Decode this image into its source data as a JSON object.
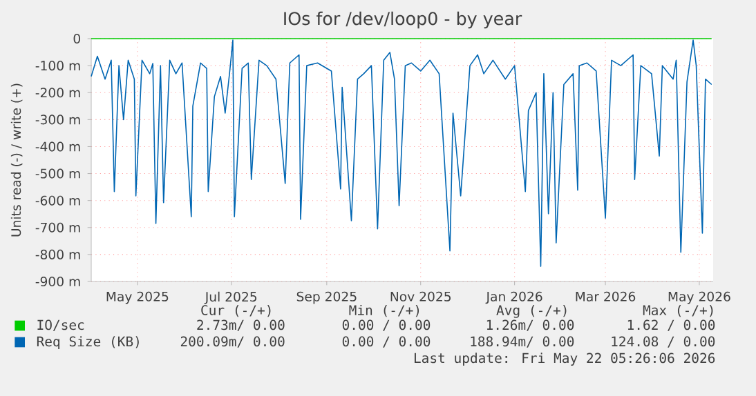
{
  "chart_data": {
    "type": "line",
    "title": "IOs for /dev/loop0 - by year",
    "ylabel": "Units read (-) / write (+)",
    "xlim": [
      "2025-04-01",
      "2026-05-10"
    ],
    "xticks": [
      {
        "value": "2025-05-01",
        "label": "May 2025"
      },
      {
        "value": "2025-07-01",
        "label": "Jul 2025"
      },
      {
        "value": "2025-09-01",
        "label": "Sep 2025"
      },
      {
        "value": "2025-11-01",
        "label": "Nov 2025"
      },
      {
        "value": "2026-01-01",
        "label": "Jan 2026"
      },
      {
        "value": "2026-03-01",
        "label": "Mar 2026"
      },
      {
        "value": "2026-05-01",
        "label": "May 2026"
      }
    ],
    "ylim": [
      -900,
      0
    ],
    "yticks": [
      {
        "value": -900,
        "label": "-900 m"
      },
      {
        "value": -800,
        "label": "-800 m"
      },
      {
        "value": -700,
        "label": "-700 m"
      },
      {
        "value": -600,
        "label": "-600 m"
      },
      {
        "value": -500,
        "label": "-500 m"
      },
      {
        "value": -400,
        "label": "-400 m"
      },
      {
        "value": -300,
        "label": "-300 m"
      },
      {
        "value": -200,
        "label": "-200 m"
      },
      {
        "value": -100,
        "label": "-100 m"
      },
      0
    ],
    "grid": true,
    "legend": "bottom",
    "series": [
      {
        "name": "IO/sec",
        "color": "#00cc00",
        "x": [
          "2025-04-01",
          "2026-05-09"
        ],
        "values": [
          0,
          0
        ]
      },
      {
        "name": "Req Size (KB)",
        "color": "#0066b3",
        "x": [
          "2025-04-01",
          "2025-04-05",
          "2025-04-10",
          "2025-04-14",
          "2025-04-16",
          "2025-04-19",
          "2025-04-22",
          "2025-04-25",
          "2025-04-29",
          "2025-04-30",
          "2025-05-04",
          "2025-05-09",
          "2025-05-11",
          "2025-05-13",
          "2025-05-16",
          "2025-05-18",
          "2025-05-22",
          "2025-05-26",
          "2025-05-30",
          "2025-06-05",
          "2025-06-06",
          "2025-06-11",
          "2025-06-15",
          "2025-06-16",
          "2025-06-20",
          "2025-06-24",
          "2025-06-27",
          "2025-06-30",
          "2025-07-02",
          "2025-07-03",
          "2025-07-08",
          "2025-07-12",
          "2025-07-14",
          "2025-07-19",
          "2025-07-24",
          "2025-07-30",
          "2025-08-05",
          "2025-08-08",
          "2025-08-14",
          "2025-08-15",
          "2025-08-19",
          "2025-08-26",
          "2025-09-04",
          "2025-09-10",
          "2025-09-11",
          "2025-09-17",
          "2025-09-21",
          "2025-09-25",
          "2025-09-30",
          "2025-10-04",
          "2025-10-08",
          "2025-10-12",
          "2025-10-15",
          "2025-10-18",
          "2025-10-22",
          "2025-10-26",
          "2025-11-01",
          "2025-11-07",
          "2025-11-13",
          "2025-11-20",
          "2025-11-22",
          "2025-11-27",
          "2025-12-03",
          "2025-12-08",
          "2025-12-12",
          "2025-12-18",
          "2025-12-26",
          "2026-01-01",
          "2026-01-08",
          "2026-01-10",
          "2026-01-15",
          "2026-01-18",
          "2026-01-20",
          "2026-01-23",
          "2026-01-26",
          "2026-01-28",
          "2026-02-02",
          "2026-02-08",
          "2026-02-11",
          "2026-02-12",
          "2026-02-17",
          "2026-02-23",
          "2026-03-01",
          "2026-03-05",
          "2026-03-11",
          "2026-03-19",
          "2026-03-20",
          "2026-03-24",
          "2026-03-31",
          "2026-04-05",
          "2026-04-07",
          "2026-04-14",
          "2026-04-16",
          "2026-04-19",
          "2026-04-23",
          "2026-04-27",
          "2026-04-29",
          "2026-05-03",
          "2026-05-05",
          "2026-05-09"
        ],
        "values": [
          -140,
          -65,
          -150,
          -80,
          -567,
          -100,
          -300,
          -80,
          -150,
          -583,
          -80,
          -130,
          -92,
          -685,
          -100,
          -608,
          -80,
          -130,
          -90,
          -660,
          -250,
          -90,
          -110,
          -567,
          -215,
          -140,
          -276,
          -120,
          -5,
          -660,
          -110,
          -90,
          -522,
          -80,
          -100,
          -150,
          -537,
          -90,
          -60,
          -670,
          -100,
          -90,
          -120,
          -557,
          -180,
          -675,
          -150,
          -130,
          -100,
          -705,
          -80,
          -51,
          -150,
          -619,
          -100,
          -90,
          -120,
          -80,
          -130,
          -787,
          -276,
          -583,
          -100,
          -60,
          -130,
          -80,
          -150,
          -100,
          -567,
          -266,
          -200,
          -844,
          -130,
          -649,
          -200,
          -757,
          -170,
          -130,
          -562,
          -100,
          -90,
          -120,
          -665,
          -80,
          -100,
          -60,
          -522,
          -100,
          -130,
          -435,
          -100,
          -150,
          -80,
          -792,
          -160,
          -5,
          -100,
          -721,
          -150,
          -170
        ]
      }
    ],
    "annotations": [
      "Cur (-/+)",
      "Min (-/+)",
      "Avg (-/+)",
      "Max (-/+)",
      "2.73m/  0.00",
      "0.00 /  0.00",
      "1.26m/  0.00",
      "1.62 /  0.00",
      "200.09m/  0.00",
      "0.00 /  0.00",
      "188.94m/  0.00",
      "124.08 /  0.00",
      "Last update: Fri May 22 05:26:06 2026"
    ]
  }
}
